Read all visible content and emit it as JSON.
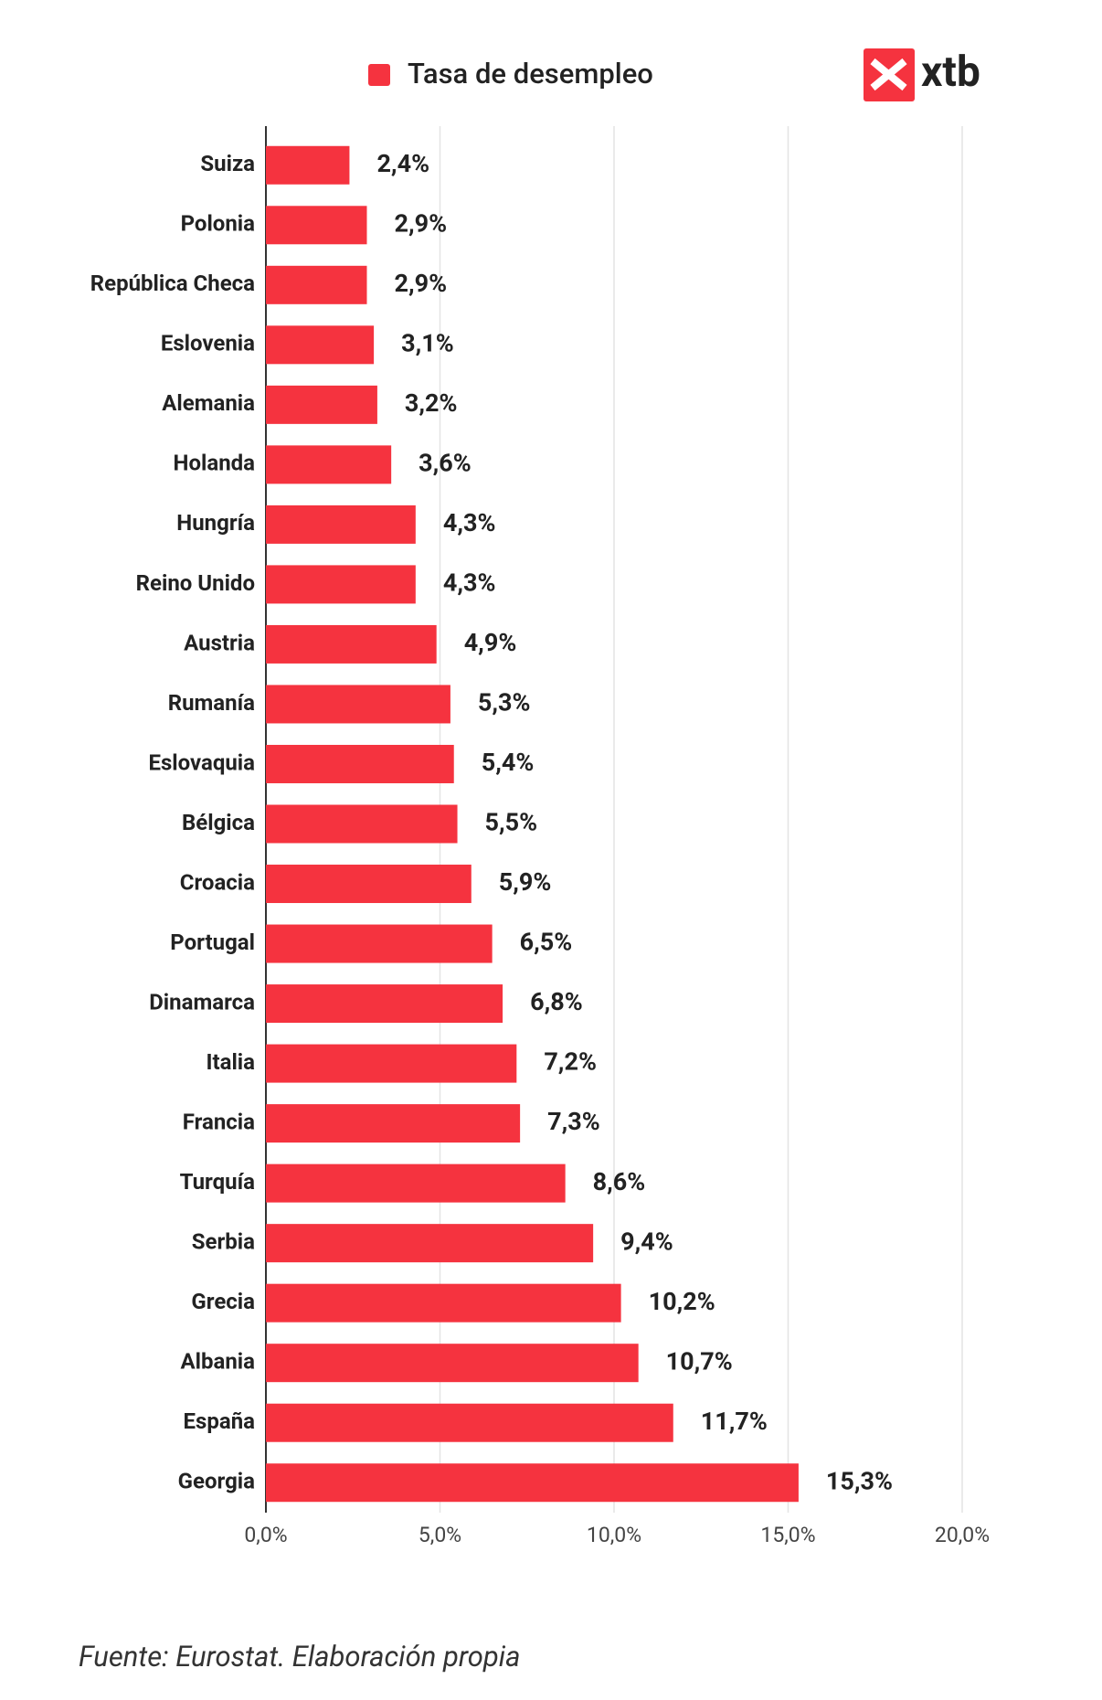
{
  "chart_data": {
    "type": "bar",
    "orientation": "horizontal",
    "logo": "xtb",
    "source": "Fuente: Eurostat. Elaboración propia",
    "categories": [
      "Suiza",
      "Polonia",
      "República Checa",
      "Eslovenia",
      "Alemania",
      "Holanda",
      "Hungría",
      "Reino Unido",
      "Austria",
      "Rumanía",
      "Eslovaquia",
      "Bélgica",
      "Croacia",
      "Portugal",
      "Dinamarca",
      "Italia",
      "Francia",
      "Turquía",
      "Serbia",
      "Grecia",
      "Albania",
      "España",
      "Georgia"
    ],
    "series": [
      {
        "name": "Tasa de desempleo",
        "color": "#f5333f",
        "values": [
          2.4,
          2.9,
          2.9,
          3.1,
          3.2,
          3.6,
          4.3,
          4.3,
          4.9,
          5.3,
          5.4,
          5.5,
          5.9,
          6.5,
          6.8,
          7.2,
          7.3,
          8.6,
          9.4,
          10.2,
          10.7,
          11.7,
          15.3
        ],
        "value_labels": [
          "2,4%",
          "2,9%",
          "2,9%",
          "3,1%",
          "3,2%",
          "3,6%",
          "4,3%",
          "4,3%",
          "4,9%",
          "5,3%",
          "5,4%",
          "5,5%",
          "5,9%",
          "6,5%",
          "6,8%",
          "7,2%",
          "7,3%",
          "8,6%",
          "9,4%",
          "10,2%",
          "10,7%",
          "11,7%",
          "15,3%"
        ]
      }
    ],
    "xlim": [
      0,
      20
    ],
    "xticks": [
      {
        "value": 0,
        "label": "0,0%"
      },
      {
        "value": 5,
        "label": "5,0%"
      },
      {
        "value": 10,
        "label": "10,0%"
      },
      {
        "value": 15,
        "label": "15,0%"
      },
      {
        "value": 20,
        "label": "20,0%"
      }
    ],
    "grid": true
  }
}
